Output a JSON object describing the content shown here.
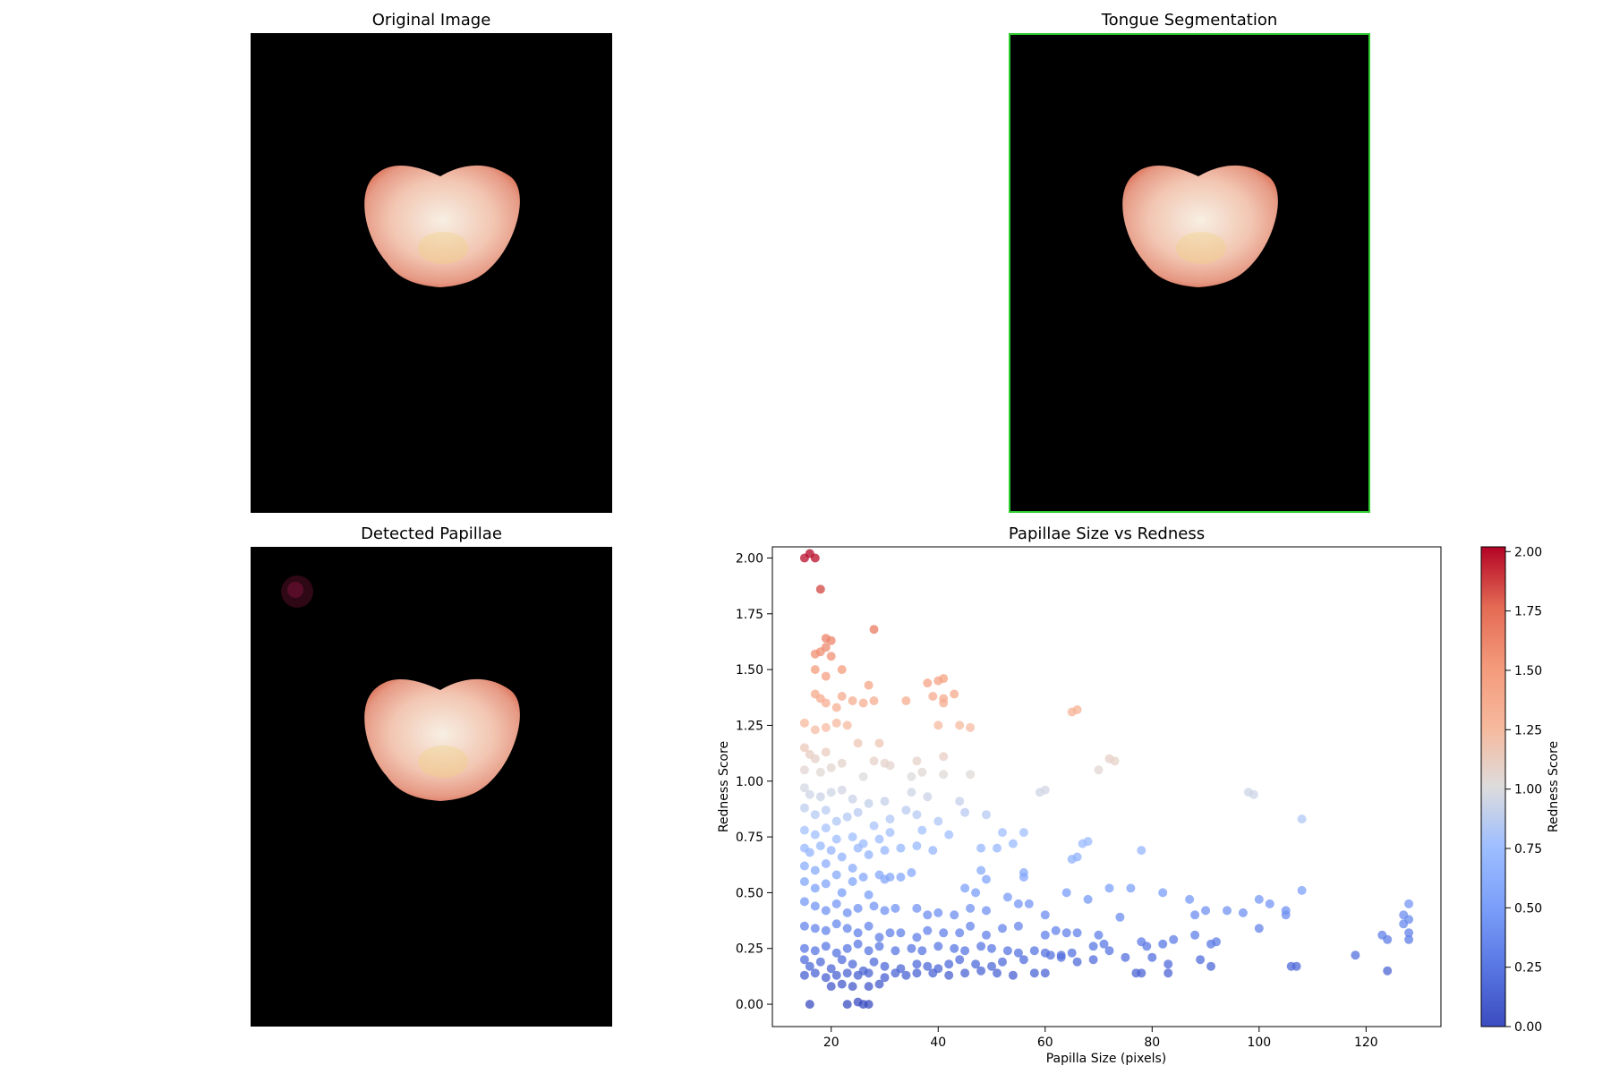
{
  "panels": {
    "original": {
      "title": "Original Image"
    },
    "segmentation": {
      "title": "Tongue Segmentation",
      "border_color": "#2ecc2e"
    },
    "detected": {
      "title": "Detected Papillae"
    }
  },
  "image": {
    "background": "#000000",
    "tongue_edge": "#d9694f",
    "tongue_mid": "#f2c6b2",
    "tongue_center": "#f7efe3",
    "tongue_tint": "#f0d27a"
  },
  "chart_data": {
    "type": "scatter",
    "title": "Papillae Size vs Redness",
    "xlabel": "Papilla Size (pixels)",
    "ylabel": "Redness Score",
    "xlim": [
      9,
      134
    ],
    "ylim": [
      -0.1,
      2.05
    ],
    "xticks": [
      "20",
      "40",
      "60",
      "80",
      "100",
      "120"
    ],
    "yticks": [
      "0.00",
      "0.25",
      "0.50",
      "0.75",
      "1.00",
      "1.25",
      "1.50",
      "1.75",
      "2.00"
    ],
    "colormap": "coolwarm",
    "colorbar": {
      "label": "Redness Score",
      "range": [
        0,
        2.02
      ],
      "ticks": [
        "0.00",
        "0.25",
        "0.50",
        "0.75",
        "1.00",
        "1.25",
        "1.50",
        "1.75",
        "2.00"
      ]
    },
    "points": [
      [
        15,
        2.0
      ],
      [
        16,
        2.02
      ],
      [
        17,
        2.0
      ],
      [
        18,
        1.86
      ],
      [
        28,
        1.68
      ],
      [
        19,
        1.64
      ],
      [
        20,
        1.63
      ],
      [
        19,
        1.6
      ],
      [
        17,
        1.57
      ],
      [
        18,
        1.58
      ],
      [
        20,
        1.56
      ],
      [
        17,
        1.5
      ],
      [
        22,
        1.5
      ],
      [
        19,
        1.47
      ],
      [
        27,
        1.43
      ],
      [
        40,
        1.45
      ],
      [
        41,
        1.46
      ],
      [
        38,
        1.44
      ],
      [
        17,
        1.39
      ],
      [
        18,
        1.37
      ],
      [
        19,
        1.35
      ],
      [
        22,
        1.38
      ],
      [
        24,
        1.36
      ],
      [
        26,
        1.35
      ],
      [
        28,
        1.36
      ],
      [
        34,
        1.36
      ],
      [
        39,
        1.38
      ],
      [
        41,
        1.37
      ],
      [
        43,
        1.39
      ],
      [
        41,
        1.35
      ],
      [
        65,
        1.31
      ],
      [
        66,
        1.32
      ],
      [
        21,
        1.33
      ],
      [
        15,
        1.26
      ],
      [
        17,
        1.23
      ],
      [
        19,
        1.24
      ],
      [
        21,
        1.26
      ],
      [
        23,
        1.25
      ],
      [
        40,
        1.25
      ],
      [
        44,
        1.25
      ],
      [
        46,
        1.24
      ],
      [
        25,
        1.17
      ],
      [
        29,
        1.17
      ],
      [
        15,
        1.15
      ],
      [
        16,
        1.12
      ],
      [
        19,
        1.13
      ],
      [
        17,
        1.1
      ],
      [
        22,
        1.08
      ],
      [
        28,
        1.09
      ],
      [
        30,
        1.08
      ],
      [
        31,
        1.07
      ],
      [
        36,
        1.09
      ],
      [
        41,
        1.11
      ],
      [
        72,
        1.1
      ],
      [
        73,
        1.09
      ],
      [
        70,
        1.05
      ],
      [
        15,
        1.05
      ],
      [
        18,
        1.04
      ],
      [
        20,
        1.06
      ],
      [
        26,
        1.02
      ],
      [
        35,
        1.02
      ],
      [
        37,
        1.04
      ],
      [
        41,
        1.03
      ],
      [
        46,
        1.03
      ],
      [
        15,
        0.97
      ],
      [
        16,
        0.94
      ],
      [
        18,
        0.93
      ],
      [
        20,
        0.95
      ],
      [
        22,
        0.96
      ],
      [
        24,
        0.92
      ],
      [
        27,
        0.9
      ],
      [
        30,
        0.91
      ],
      [
        35,
        0.95
      ],
      [
        38,
        0.93
      ],
      [
        44,
        0.91
      ],
      [
        59,
        0.95
      ],
      [
        60,
        0.96
      ],
      [
        98,
        0.95
      ],
      [
        99,
        0.94
      ],
      [
        108,
        0.83
      ],
      [
        15,
        0.88
      ],
      [
        17,
        0.85
      ],
      [
        19,
        0.87
      ],
      [
        21,
        0.82
      ],
      [
        23,
        0.84
      ],
      [
        25,
        0.86
      ],
      [
        28,
        0.8
      ],
      [
        31,
        0.83
      ],
      [
        34,
        0.87
      ],
      [
        36,
        0.85
      ],
      [
        40,
        0.82
      ],
      [
        45,
        0.86
      ],
      [
        49,
        0.85
      ],
      [
        15,
        0.78
      ],
      [
        17,
        0.76
      ],
      [
        19,
        0.79
      ],
      [
        21,
        0.74
      ],
      [
        24,
        0.75
      ],
      [
        26,
        0.72
      ],
      [
        29,
        0.74
      ],
      [
        31,
        0.77
      ],
      [
        37,
        0.78
      ],
      [
        42,
        0.76
      ],
      [
        52,
        0.77
      ],
      [
        56,
        0.77
      ],
      [
        54,
        0.72
      ],
      [
        15,
        0.7
      ],
      [
        16,
        0.68
      ],
      [
        18,
        0.71
      ],
      [
        20,
        0.69
      ],
      [
        22,
        0.66
      ],
      [
        25,
        0.7
      ],
      [
        27,
        0.67
      ],
      [
        30,
        0.69
      ],
      [
        33,
        0.7
      ],
      [
        36,
        0.71
      ],
      [
        39,
        0.69
      ],
      [
        48,
        0.7
      ],
      [
        51,
        0.7
      ],
      [
        66,
        0.66
      ],
      [
        67,
        0.72
      ],
      [
        68,
        0.73
      ],
      [
        65,
        0.65
      ],
      [
        78,
        0.69
      ],
      [
        15,
        0.62
      ],
      [
        17,
        0.6
      ],
      [
        19,
        0.63
      ],
      [
        21,
        0.58
      ],
      [
        24,
        0.61
      ],
      [
        26,
        0.57
      ],
      [
        29,
        0.58
      ],
      [
        31,
        0.57
      ],
      [
        35,
        0.59
      ],
      [
        48,
        0.6
      ],
      [
        49,
        0.56
      ],
      [
        56,
        0.59
      ],
      [
        56,
        0.57
      ],
      [
        15,
        0.55
      ],
      [
        17,
        0.52
      ],
      [
        19,
        0.54
      ],
      [
        22,
        0.5
      ],
      [
        24,
        0.55
      ],
      [
        27,
        0.49
      ],
      [
        30,
        0.56
      ],
      [
        33,
        0.57
      ],
      [
        45,
        0.52
      ],
      [
        47,
        0.5
      ],
      [
        53,
        0.48
      ],
      [
        64,
        0.5
      ],
      [
        68,
        0.47
      ],
      [
        72,
        0.52
      ],
      [
        76,
        0.52
      ],
      [
        82,
        0.5
      ],
      [
        87,
        0.47
      ],
      [
        94,
        0.42
      ],
      [
        97,
        0.41
      ],
      [
        100,
        0.47
      ],
      [
        102,
        0.45
      ],
      [
        105,
        0.4
      ],
      [
        108,
        0.51
      ],
      [
        128,
        0.45
      ],
      [
        127,
        0.4
      ],
      [
        128,
        0.38
      ],
      [
        15,
        0.46
      ],
      [
        17,
        0.44
      ],
      [
        19,
        0.42
      ],
      [
        21,
        0.45
      ],
      [
        23,
        0.41
      ],
      [
        25,
        0.43
      ],
      [
        28,
        0.44
      ],
      [
        30,
        0.42
      ],
      [
        32,
        0.43
      ],
      [
        36,
        0.43
      ],
      [
        38,
        0.4
      ],
      [
        40,
        0.41
      ],
      [
        43,
        0.4
      ],
      [
        46,
        0.43
      ],
      [
        49,
        0.42
      ],
      [
        55,
        0.45
      ],
      [
        57,
        0.45
      ],
      [
        60,
        0.4
      ],
      [
        62,
        0.33
      ],
      [
        66,
        0.32
      ],
      [
        70,
        0.31
      ],
      [
        74,
        0.39
      ],
      [
        88,
        0.4
      ],
      [
        90,
        0.42
      ],
      [
        15,
        0.35
      ],
      [
        17,
        0.34
      ],
      [
        19,
        0.33
      ],
      [
        21,
        0.36
      ],
      [
        23,
        0.34
      ],
      [
        25,
        0.32
      ],
      [
        27,
        0.35
      ],
      [
        29,
        0.3
      ],
      [
        31,
        0.32
      ],
      [
        33,
        0.32
      ],
      [
        36,
        0.3
      ],
      [
        38,
        0.33
      ],
      [
        41,
        0.32
      ],
      [
        44,
        0.32
      ],
      [
        46,
        0.35
      ],
      [
        49,
        0.31
      ],
      [
        52,
        0.34
      ],
      [
        55,
        0.35
      ],
      [
        60,
        0.31
      ],
      [
        64,
        0.32
      ],
      [
        71,
        0.27
      ],
      [
        78,
        0.28
      ],
      [
        84,
        0.29
      ],
      [
        88,
        0.31
      ],
      [
        91,
        0.27
      ],
      [
        92,
        0.28
      ],
      [
        100,
        0.34
      ],
      [
        105,
        0.42
      ],
      [
        123,
        0.31
      ],
      [
        124,
        0.29
      ],
      [
        127,
        0.36
      ],
      [
        128,
        0.29
      ],
      [
        128,
        0.32
      ],
      [
        15,
        0.25
      ],
      [
        17,
        0.24
      ],
      [
        19,
        0.26
      ],
      [
        21,
        0.23
      ],
      [
        23,
        0.25
      ],
      [
        25,
        0.27
      ],
      [
        27,
        0.24
      ],
      [
        29,
        0.26
      ],
      [
        32,
        0.24
      ],
      [
        35,
        0.25
      ],
      [
        37,
        0.24
      ],
      [
        40,
        0.26
      ],
      [
        43,
        0.25
      ],
      [
        45,
        0.24
      ],
      [
        48,
        0.26
      ],
      [
        50,
        0.25
      ],
      [
        53,
        0.24
      ],
      [
        55,
        0.23
      ],
      [
        58,
        0.24
      ],
      [
        60,
        0.23
      ],
      [
        63,
        0.22
      ],
      [
        65,
        0.23
      ],
      [
        69,
        0.26
      ],
      [
        72,
        0.24
      ],
      [
        79,
        0.26
      ],
      [
        82,
        0.27
      ],
      [
        15,
        0.2
      ],
      [
        16,
        0.17
      ],
      [
        18,
        0.19
      ],
      [
        20,
        0.16
      ],
      [
        22,
        0.2
      ],
      [
        24,
        0.18
      ],
      [
        26,
        0.15
      ],
      [
        28,
        0.19
      ],
      [
        30,
        0.17
      ],
      [
        33,
        0.16
      ],
      [
        36,
        0.18
      ],
      [
        38,
        0.17
      ],
      [
        40,
        0.16
      ],
      [
        42,
        0.18
      ],
      [
        44,
        0.2
      ],
      [
        47,
        0.18
      ],
      [
        50,
        0.17
      ],
      [
        52,
        0.19
      ],
      [
        56,
        0.2
      ],
      [
        61,
        0.22
      ],
      [
        63,
        0.21
      ],
      [
        66,
        0.19
      ],
      [
        69,
        0.2
      ],
      [
        75,
        0.21
      ],
      [
        80,
        0.21
      ],
      [
        83,
        0.18
      ],
      [
        89,
        0.2
      ],
      [
        15,
        0.13
      ],
      [
        17,
        0.14
      ],
      [
        19,
        0.12
      ],
      [
        21,
        0.13
      ],
      [
        23,
        0.14
      ],
      [
        25,
        0.13
      ],
      [
        27,
        0.14
      ],
      [
        30,
        0.12
      ],
      [
        32,
        0.14
      ],
      [
        34,
        0.13
      ],
      [
        36,
        0.14
      ],
      [
        39,
        0.14
      ],
      [
        42,
        0.13
      ],
      [
        45,
        0.14
      ],
      [
        48,
        0.15
      ],
      [
        51,
        0.14
      ],
      [
        54,
        0.13
      ],
      [
        58,
        0.14
      ],
      [
        60,
        0.14
      ],
      [
        77,
        0.14
      ],
      [
        78,
        0.14
      ],
      [
        83,
        0.14
      ],
      [
        91,
        0.17
      ],
      [
        106,
        0.17
      ],
      [
        107,
        0.17
      ],
      [
        118,
        0.22
      ],
      [
        124,
        0.15
      ],
      [
        20,
        0.08
      ],
      [
        22,
        0.09
      ],
      [
        24,
        0.08
      ],
      [
        27,
        0.08
      ],
      [
        29,
        0.09
      ],
      [
        16,
        0.0
      ],
      [
        23,
        0.0
      ],
      [
        25,
        0.01
      ],
      [
        26,
        0.0
      ],
      [
        27,
        0.0
      ]
    ]
  }
}
